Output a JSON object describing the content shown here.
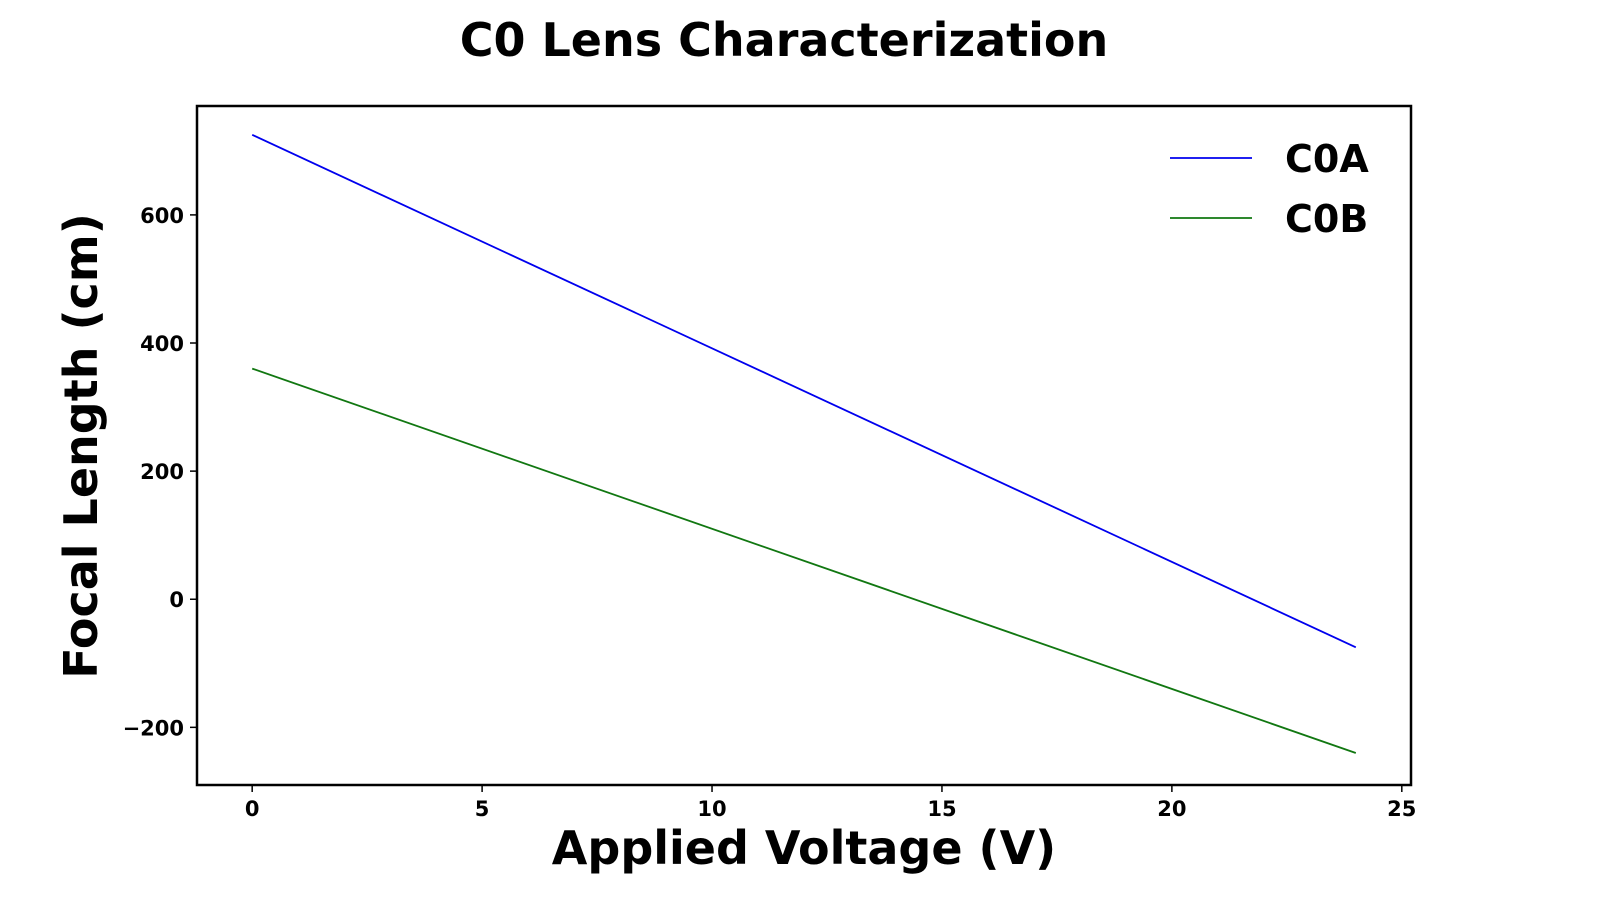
{
  "chart_data": {
    "type": "line",
    "title": "C0 Lens Characterization",
    "xlabel": "Applied Voltage (V)",
    "ylabel": "Focal Length (cm)",
    "xlim": [
      -1.2,
      25.2
    ],
    "ylim": [
      -290,
      770
    ],
    "xticks": [
      0,
      5,
      10,
      15,
      20,
      25
    ],
    "xtick_labels": [
      "0",
      "5",
      "10",
      "15",
      "20",
      "25"
    ],
    "yticks": [
      -200,
      0,
      200,
      400,
      600
    ],
    "ytick_labels": [
      "−200",
      "0",
      "200",
      "400",
      "600"
    ],
    "grid": false,
    "legend_position": "top-right",
    "series": [
      {
        "name": "C0A",
        "color": "#0000ee",
        "x": [
          0,
          24
        ],
        "y": [
          725,
          -75
        ]
      },
      {
        "name": "C0B",
        "color": "#117711",
        "x": [
          0,
          24
        ],
        "y": [
          360,
          -240
        ]
      }
    ]
  }
}
